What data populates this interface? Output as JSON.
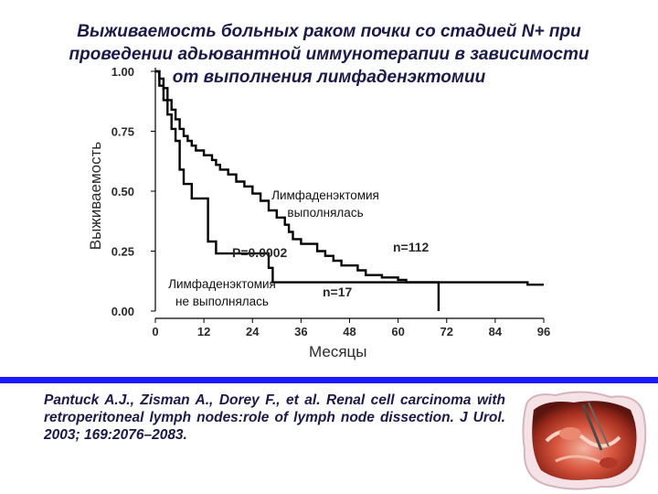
{
  "slide": {
    "title_lines": [
      "Выживаемость больных раком почки со стадией N+ при",
      "проведении адьювантной иммунотерапии в зависимости",
      "от выполнения лимфаденэктомии"
    ],
    "citation": "Pantuck A.J., Zisman A., Dorey F., et al. Renal cell carcinoma with retroperitoneal lymph nodes:role of lymph node dissection. J Urol. 2003; 169:2076–2083.",
    "accent_color": "#1a1aff",
    "photo_icon": "surgery-photo"
  },
  "chart_data": {
    "type": "line",
    "xlabel": "Месяцы",
    "ylabel": "Выживаемость",
    "xlim": [
      0,
      96
    ],
    "ylim": [
      0,
      1
    ],
    "xticks": [
      "0",
      "12",
      "24",
      "36",
      "48",
      "60",
      "72",
      "84",
      "96"
    ],
    "yticks": [
      "0.00",
      "0.25",
      "0.50",
      "0.75",
      "1.00"
    ],
    "grid": false,
    "series": [
      {
        "name": "Лимфаденэктомия выполнялась",
        "annotation_lines": [
          "Лимфаденэктомия",
          "выполнялась"
        ],
        "n_label": "n=112",
        "points": [
          [
            0,
            1
          ],
          [
            1,
            1
          ],
          [
            1,
            0.97
          ],
          [
            2,
            0.97
          ],
          [
            2,
            0.93
          ],
          [
            3,
            0.93
          ],
          [
            3,
            0.88
          ],
          [
            4,
            0.88
          ],
          [
            4,
            0.84
          ],
          [
            5,
            0.84
          ],
          [
            5,
            0.8
          ],
          [
            6,
            0.8
          ],
          [
            6,
            0.76
          ],
          [
            7,
            0.76
          ],
          [
            7,
            0.73
          ],
          [
            8,
            0.73
          ],
          [
            8,
            0.71
          ],
          [
            9,
            0.71
          ],
          [
            9,
            0.69
          ],
          [
            10,
            0.69
          ],
          [
            10,
            0.67
          ],
          [
            12,
            0.67
          ],
          [
            12,
            0.65
          ],
          [
            14,
            0.65
          ],
          [
            14,
            0.63
          ],
          [
            15,
            0.63
          ],
          [
            15,
            0.61
          ],
          [
            16,
            0.61
          ],
          [
            16,
            0.59
          ],
          [
            18,
            0.59
          ],
          [
            18,
            0.57
          ],
          [
            20,
            0.57
          ],
          [
            20,
            0.54
          ],
          [
            22,
            0.54
          ],
          [
            22,
            0.52
          ],
          [
            24,
            0.52
          ],
          [
            24,
            0.49
          ],
          [
            26,
            0.49
          ],
          [
            26,
            0.46
          ],
          [
            28,
            0.46
          ],
          [
            28,
            0.42
          ],
          [
            30,
            0.42
          ],
          [
            30,
            0.39
          ],
          [
            32,
            0.39
          ],
          [
            32,
            0.36
          ],
          [
            33,
            0.36
          ],
          [
            33,
            0.33
          ],
          [
            34,
            0.33
          ],
          [
            34,
            0.3
          ],
          [
            36,
            0.3
          ],
          [
            36,
            0.28
          ],
          [
            40,
            0.28
          ],
          [
            40,
            0.25
          ],
          [
            42,
            0.25
          ],
          [
            42,
            0.23
          ],
          [
            44,
            0.23
          ],
          [
            44,
            0.21
          ],
          [
            46,
            0.21
          ],
          [
            46,
            0.19
          ],
          [
            50,
            0.19
          ],
          [
            50,
            0.17
          ],
          [
            52,
            0.17
          ],
          [
            52,
            0.15
          ],
          [
            56,
            0.15
          ],
          [
            56,
            0.14
          ],
          [
            60,
            0.14
          ],
          [
            60,
            0.13
          ],
          [
            62,
            0.13
          ],
          [
            62,
            0.12
          ],
          [
            92,
            0.12
          ],
          [
            92,
            0.11
          ],
          [
            96,
            0.11
          ]
        ]
      },
      {
        "name": "Лимфаденэктомия не выполнялась",
        "annotation_lines": [
          "Лимфаденэктомия",
          "не выполнялась"
        ],
        "n_label": "n=17",
        "points": [
          [
            0,
            1
          ],
          [
            1,
            1
          ],
          [
            1,
            0.94
          ],
          [
            2,
            0.94
          ],
          [
            2,
            0.88
          ],
          [
            3,
            0.88
          ],
          [
            3,
            0.82
          ],
          [
            4,
            0.82
          ],
          [
            4,
            0.76
          ],
          [
            5,
            0.76
          ],
          [
            5,
            0.71
          ],
          [
            6,
            0.71
          ],
          [
            6,
            0.59
          ],
          [
            7,
            0.59
          ],
          [
            7,
            0.53
          ],
          [
            9,
            0.53
          ],
          [
            9,
            0.47
          ],
          [
            13,
            0.47
          ],
          [
            13,
            0.29
          ],
          [
            15,
            0.29
          ],
          [
            15,
            0.24
          ],
          [
            28,
            0.24
          ],
          [
            28,
            0.18
          ],
          [
            29,
            0.18
          ],
          [
            29,
            0.12
          ],
          [
            70,
            0.12
          ],
          [
            70,
            0
          ]
        ]
      }
    ],
    "annotations": [
      "P=0.0002"
    ]
  }
}
